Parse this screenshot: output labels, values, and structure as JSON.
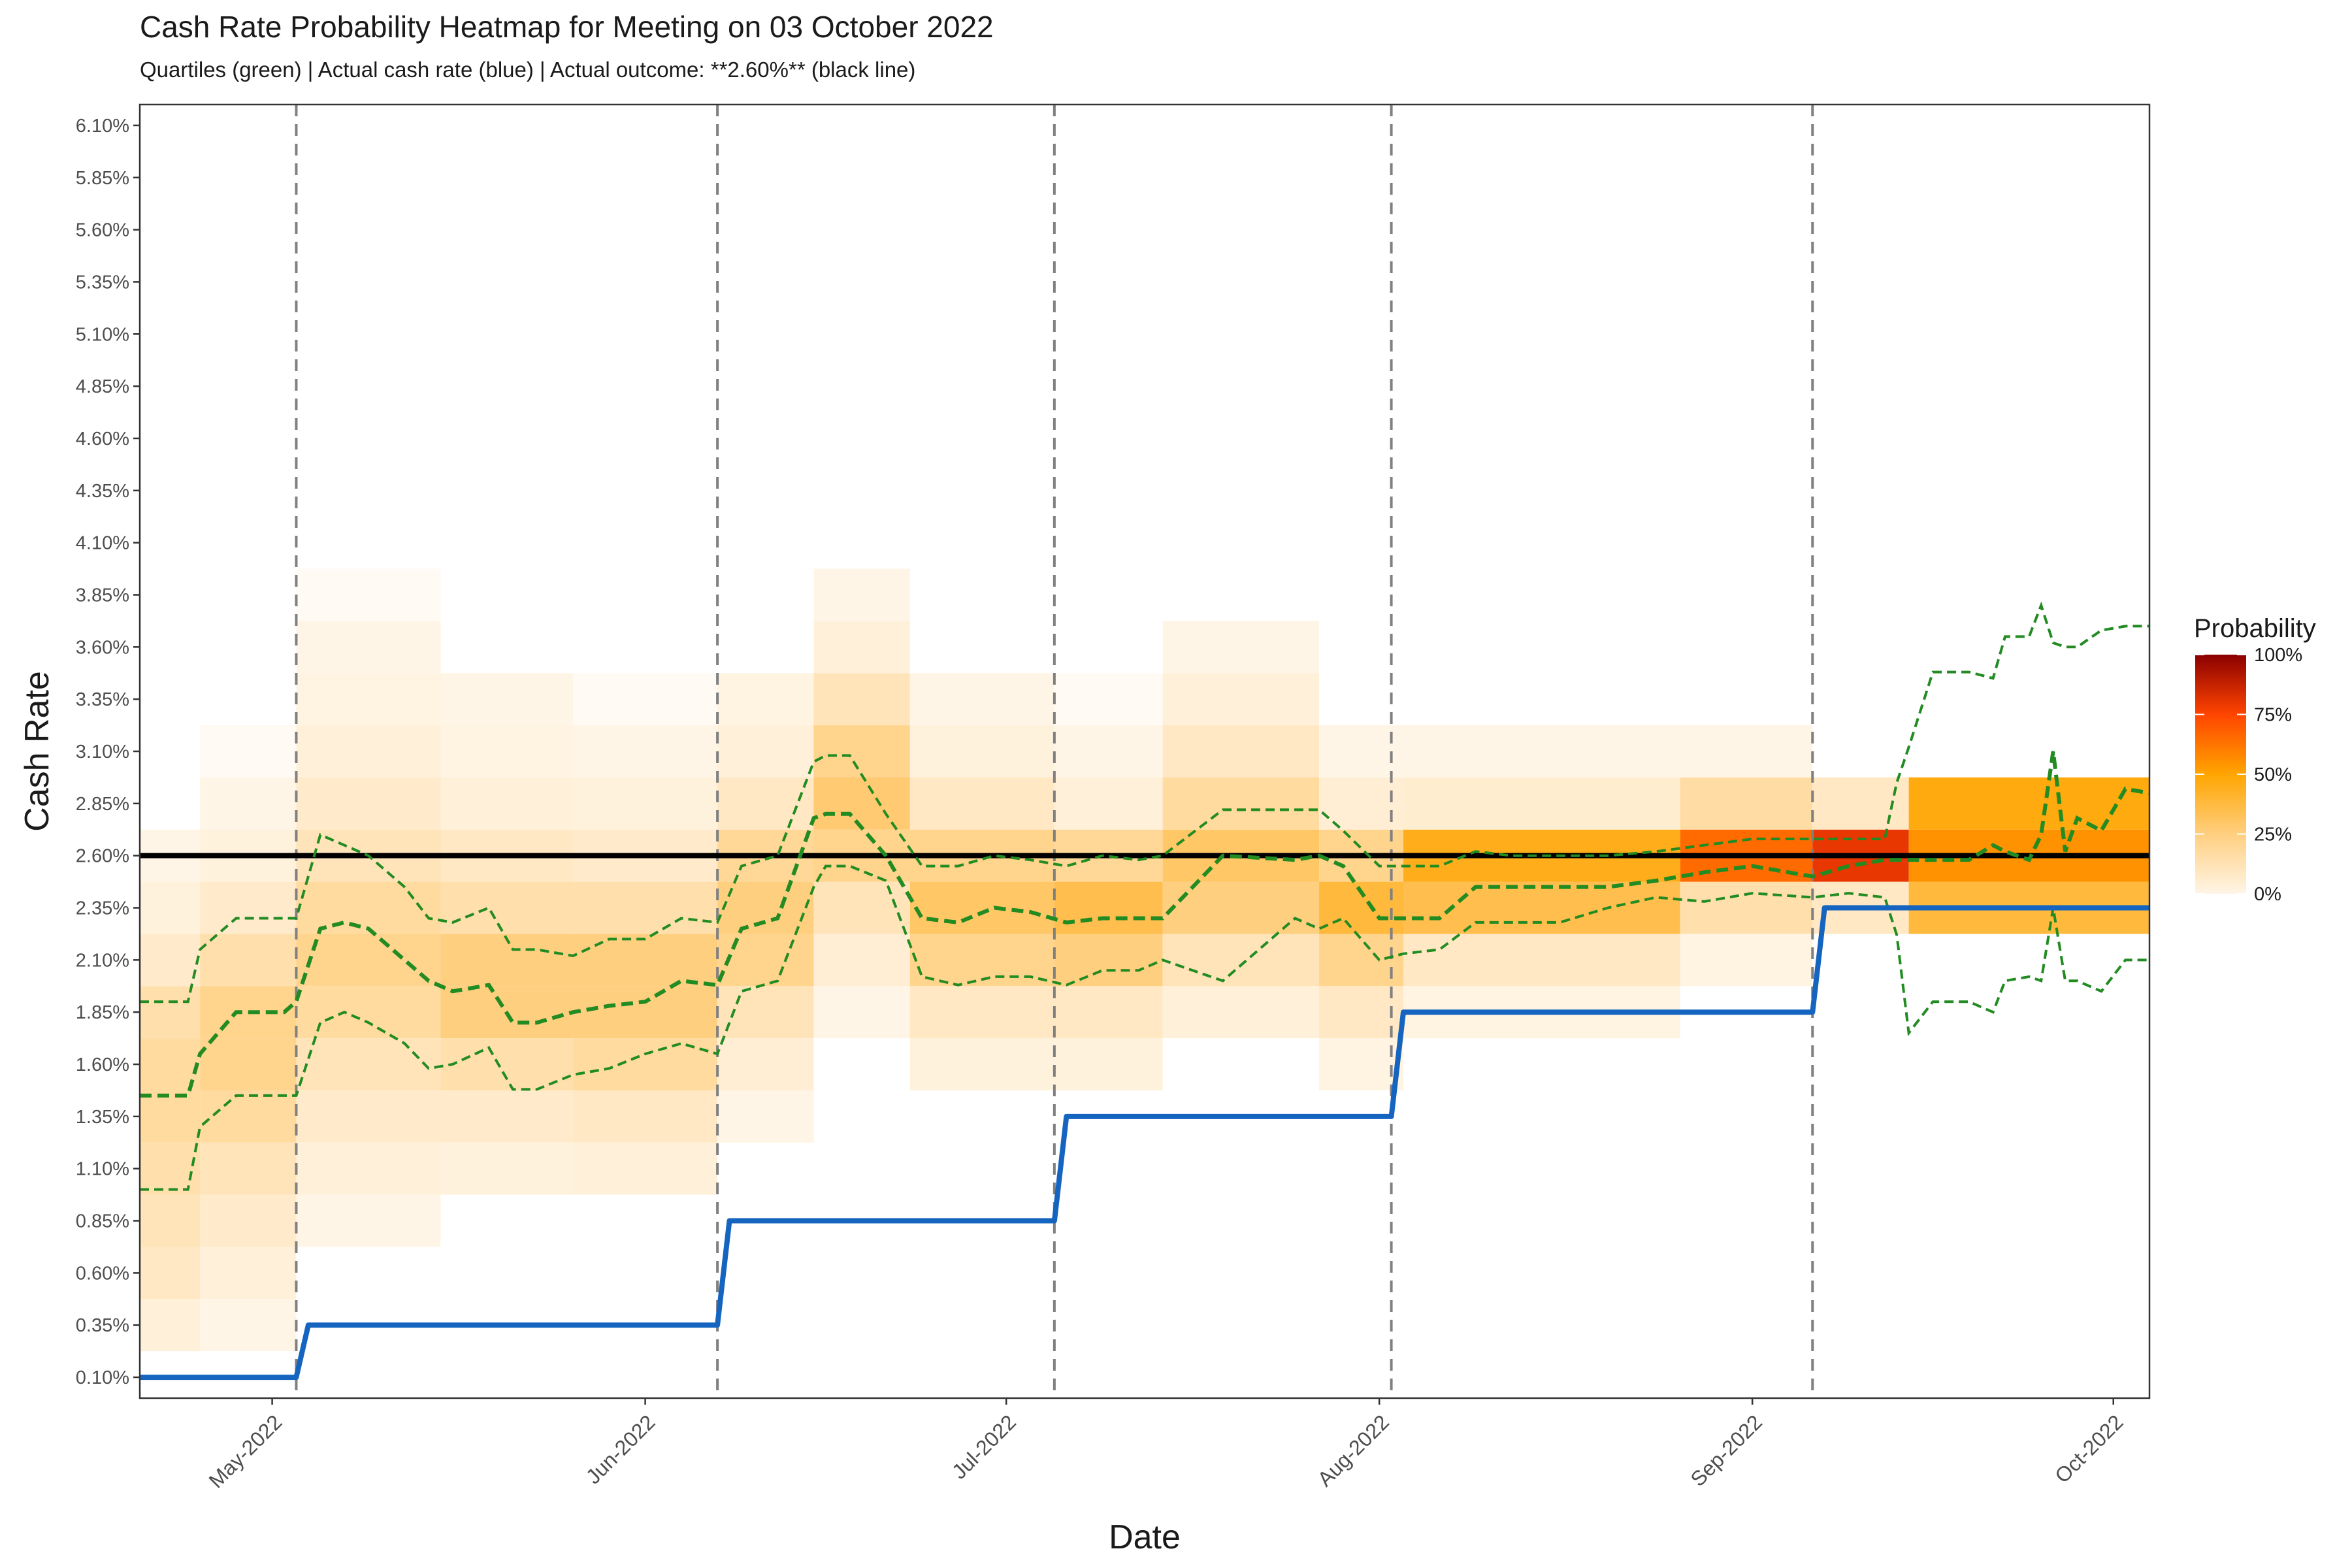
{
  "chart_data": {
    "type": "heatmap",
    "title": "Cash Rate Probability Heatmap for Meeting on 03 October 2022",
    "subtitle": "Quartiles (green) | Actual cash rate (blue) | Actual outcome: **2.60%** (black line)",
    "xlabel": "Date",
    "ylabel": "Cash Rate",
    "legend": {
      "title": "Probability",
      "placement": "right",
      "labels": [
        "100%",
        "75%",
        "50%",
        "25%",
        "0%"
      ]
    },
    "x_range": [
      "2022-04-20",
      "2022-10-04"
    ],
    "x_ticks": [
      {
        "date": "2022-05-01",
        "label": "May-2022"
      },
      {
        "date": "2022-06-01",
        "label": "Jun-2022"
      },
      {
        "date": "2022-07-01",
        "label": "Jul-2022"
      },
      {
        "date": "2022-08-01",
        "label": "Aug-2022"
      },
      {
        "date": "2022-09-01",
        "label": "Sep-2022"
      },
      {
        "date": "2022-10-01",
        "label": "Oct-2022"
      }
    ],
    "ylim": [
      0.0,
      6.2
    ],
    "y_ticks": [
      0.1,
      0.35,
      0.6,
      0.85,
      1.1,
      1.35,
      1.6,
      1.85,
      2.1,
      2.35,
      2.6,
      2.85,
      3.1,
      3.35,
      3.6,
      3.85,
      4.1,
      4.35,
      4.6,
      4.85,
      5.1,
      5.35,
      5.6,
      5.85,
      6.1
    ],
    "y_tick_labels": [
      "0.10%",
      "0.35%",
      "0.60%",
      "0.85%",
      "1.10%",
      "1.35%",
      "1.60%",
      "1.85%",
      "2.10%",
      "2.35%",
      "2.60%",
      "2.85%",
      "3.10%",
      "3.35%",
      "3.60%",
      "3.85%",
      "4.10%",
      "4.35%",
      "4.60%",
      "4.85%",
      "5.10%",
      "5.35%",
      "5.60%",
      "5.85%",
      "6.10%"
    ],
    "meeting_dates": [
      "2022-05-03",
      "2022-06-07",
      "2022-07-05",
      "2022-08-02",
      "2022-09-06"
    ],
    "actual_outcome": 2.6,
    "actual_cash_rate": [
      {
        "date": "2022-04-20",
        "rate": 0.1
      },
      {
        "date": "2022-05-03",
        "rate": 0.1
      },
      {
        "date": "2022-05-04",
        "rate": 0.35
      },
      {
        "date": "2022-06-07",
        "rate": 0.35
      },
      {
        "date": "2022-06-08",
        "rate": 0.85
      },
      {
        "date": "2022-07-05",
        "rate": 0.85
      },
      {
        "date": "2022-07-06",
        "rate": 1.35
      },
      {
        "date": "2022-08-02",
        "rate": 1.35
      },
      {
        "date": "2022-08-03",
        "rate": 1.85
      },
      {
        "date": "2022-09-06",
        "rate": 1.85
      },
      {
        "date": "2022-09-07",
        "rate": 2.35
      },
      {
        "date": "2022-10-04",
        "rate": 2.35
      }
    ],
    "quartiles": {
      "dates": [
        "2022-04-20",
        "2022-04-24",
        "2022-04-25",
        "2022-04-28",
        "2022-05-02",
        "2022-05-03",
        "2022-05-05",
        "2022-05-07",
        "2022-05-09",
        "2022-05-12",
        "2022-05-14",
        "2022-05-16",
        "2022-05-19",
        "2022-05-21",
        "2022-05-23",
        "2022-05-26",
        "2022-05-29",
        "2022-06-01",
        "2022-06-04",
        "2022-06-07",
        "2022-06-09",
        "2022-06-12",
        "2022-06-15",
        "2022-06-16",
        "2022-06-18",
        "2022-06-21",
        "2022-06-24",
        "2022-06-27",
        "2022-06-30",
        "2022-07-03",
        "2022-07-06",
        "2022-07-09",
        "2022-07-12",
        "2022-07-14",
        "2022-07-19",
        "2022-07-25",
        "2022-07-27",
        "2022-07-29",
        "2022-08-01",
        "2022-08-03",
        "2022-08-06",
        "2022-08-09",
        "2022-08-12",
        "2022-08-16",
        "2022-08-20",
        "2022-08-24",
        "2022-08-28",
        "2022-09-01",
        "2022-09-06",
        "2022-09-09",
        "2022-09-12",
        "2022-09-13",
        "2022-09-14",
        "2022-09-16",
        "2022-09-19",
        "2022-09-21",
        "2022-09-22",
        "2022-09-24",
        "2022-09-25",
        "2022-09-26",
        "2022-09-27",
        "2022-09-28",
        "2022-09-30",
        "2022-10-02",
        "2022-10-04"
      ],
      "q1": [
        1.0,
        1.0,
        1.3,
        1.45,
        1.45,
        1.45,
        1.8,
        1.85,
        1.8,
        1.7,
        1.58,
        1.6,
        1.68,
        1.48,
        1.48,
        1.55,
        1.58,
        1.65,
        1.7,
        1.65,
        1.95,
        2.0,
        2.45,
        2.55,
        2.55,
        2.48,
        2.02,
        1.98,
        2.02,
        2.02,
        1.98,
        2.05,
        2.05,
        2.1,
        2.0,
        2.3,
        2.25,
        2.3,
        2.1,
        2.13,
        2.15,
        2.28,
        2.28,
        2.28,
        2.35,
        2.4,
        2.38,
        2.42,
        2.4,
        2.42,
        2.4,
        2.22,
        1.75,
        1.9,
        1.9,
        1.85,
        2.0,
        2.02,
        2.0,
        2.35,
        2.0,
        2.0,
        1.95,
        2.1,
        2.1
      ],
      "median": [
        1.45,
        1.45,
        1.65,
        1.85,
        1.85,
        1.9,
        2.25,
        2.28,
        2.25,
        2.1,
        2.0,
        1.95,
        1.98,
        1.8,
        1.8,
        1.85,
        1.88,
        1.9,
        2.0,
        1.98,
        2.25,
        2.3,
        2.78,
        2.8,
        2.8,
        2.6,
        2.3,
        2.28,
        2.35,
        2.33,
        2.28,
        2.3,
        2.3,
        2.3,
        2.6,
        2.58,
        2.6,
        2.55,
        2.3,
        2.3,
        2.3,
        2.45,
        2.45,
        2.45,
        2.45,
        2.48,
        2.52,
        2.55,
        2.5,
        2.55,
        2.58,
        2.58,
        2.58,
        2.58,
        2.58,
        2.65,
        2.62,
        2.58,
        2.7,
        3.1,
        2.62,
        2.78,
        2.72,
        2.92,
        2.9
      ],
      "q3": [
        1.9,
        1.9,
        2.15,
        2.3,
        2.3,
        2.3,
        2.7,
        2.65,
        2.6,
        2.45,
        2.3,
        2.28,
        2.35,
        2.15,
        2.15,
        2.12,
        2.2,
        2.2,
        2.3,
        2.28,
        2.55,
        2.6,
        3.05,
        3.08,
        3.08,
        2.8,
        2.55,
        2.55,
        2.6,
        2.58,
        2.55,
        2.6,
        2.58,
        2.6,
        2.82,
        2.82,
        2.82,
        2.72,
        2.55,
        2.55,
        2.55,
        2.62,
        2.6,
        2.6,
        2.6,
        2.62,
        2.65,
        2.68,
        2.68,
        2.68,
        2.68,
        2.95,
        3.12,
        3.48,
        3.48,
        3.45,
        3.65,
        3.65,
        3.8,
        3.62,
        3.6,
        3.6,
        3.68,
        3.7,
        3.7
      ]
    },
    "heatmap_rows": [
      0.1,
      0.35,
      0.6,
      0.85,
      1.1,
      1.35,
      1.6,
      1.85,
      2.1,
      2.35,
      2.6,
      2.85,
      3.1,
      3.35,
      3.6,
      3.85
    ],
    "heatmap_columns": [
      {
        "start": "2022-04-20",
        "end": "2022-04-25",
        "probs": [
          0.0,
          0.05,
          0.1,
          0.12,
          0.15,
          0.18,
          0.18,
          0.15,
          0.08,
          0.04,
          0.02,
          0.0,
          0.0,
          0.0,
          0.0,
          0.0
        ]
      },
      {
        "start": "2022-04-25",
        "end": "2022-05-03",
        "probs": [
          0.0,
          0.02,
          0.05,
          0.08,
          0.12,
          0.18,
          0.22,
          0.22,
          0.15,
          0.08,
          0.04,
          0.02,
          0.01,
          0.0,
          0.0,
          0.0
        ]
      },
      {
        "start": "2022-05-03",
        "end": "2022-05-15",
        "probs": [
          0.0,
          0.0,
          0.0,
          0.02,
          0.05,
          0.08,
          0.12,
          0.18,
          0.22,
          0.18,
          0.12,
          0.08,
          0.05,
          0.03,
          0.02,
          0.01
        ]
      },
      {
        "start": "2022-05-15",
        "end": "2022-05-26",
        "probs": [
          0.0,
          0.0,
          0.0,
          0.0,
          0.04,
          0.08,
          0.15,
          0.25,
          0.25,
          0.15,
          0.1,
          0.05,
          0.03,
          0.02,
          0.0,
          0.0
        ]
      },
      {
        "start": "2022-05-26",
        "end": "2022-06-07",
        "probs": [
          0.0,
          0.0,
          0.0,
          0.0,
          0.05,
          0.1,
          0.18,
          0.25,
          0.25,
          0.15,
          0.08,
          0.04,
          0.02,
          0.01,
          0.0,
          0.0
        ]
      },
      {
        "start": "2022-06-07",
        "end": "2022-06-15",
        "probs": [
          0.0,
          0.0,
          0.0,
          0.0,
          0.0,
          0.02,
          0.06,
          0.12,
          0.22,
          0.25,
          0.2,
          0.1,
          0.05,
          0.03,
          0.0,
          0.0
        ]
      },
      {
        "start": "2022-06-15",
        "end": "2022-06-23",
        "probs": [
          0.0,
          0.0,
          0.0,
          0.0,
          0.0,
          0.0,
          0.0,
          0.02,
          0.06,
          0.12,
          0.22,
          0.28,
          0.22,
          0.12,
          0.05,
          0.02
        ]
      },
      {
        "start": "2022-06-23",
        "end": "2022-07-05",
        "probs": [
          0.0,
          0.0,
          0.0,
          0.0,
          0.0,
          0.0,
          0.04,
          0.1,
          0.22,
          0.3,
          0.22,
          0.1,
          0.04,
          0.02,
          0.0,
          0.0
        ]
      },
      {
        "start": "2022-07-05",
        "end": "2022-07-14",
        "probs": [
          0.0,
          0.0,
          0.0,
          0.0,
          0.0,
          0.0,
          0.04,
          0.1,
          0.25,
          0.35,
          0.2,
          0.05,
          0.02,
          0.01,
          0.0,
          0.0
        ]
      },
      {
        "start": "2022-07-14",
        "end": "2022-07-27",
        "probs": [
          0.0,
          0.0,
          0.0,
          0.0,
          0.0,
          0.0,
          0.0,
          0.05,
          0.12,
          0.25,
          0.3,
          0.18,
          0.1,
          0.05,
          0.02,
          0.0
        ]
      },
      {
        "start": "2022-07-27",
        "end": "2022-08-03",
        "probs": [
          0.0,
          0.0,
          0.0,
          0.0,
          0.0,
          0.0,
          0.03,
          0.1,
          0.22,
          0.38,
          0.22,
          0.06,
          0.02,
          0.0,
          0.0,
          0.0
        ]
      },
      {
        "start": "2022-08-03",
        "end": "2022-08-26",
        "probs": [
          0.0,
          0.0,
          0.0,
          0.0,
          0.0,
          0.0,
          0.0,
          0.03,
          0.1,
          0.35,
          0.45,
          0.07,
          0.02,
          0.0,
          0.0,
          0.0
        ]
      },
      {
        "start": "2022-08-26",
        "end": "2022-09-06",
        "probs": [
          0.0,
          0.0,
          0.0,
          0.0,
          0.0,
          0.0,
          0.0,
          0.0,
          0.03,
          0.15,
          0.65,
          0.17,
          0.02,
          0.0,
          0.0,
          0.0
        ]
      },
      {
        "start": "2022-09-06",
        "end": "2022-09-14",
        "probs": [
          0.0,
          0.0,
          0.0,
          0.0,
          0.0,
          0.0,
          0.0,
          0.0,
          0.0,
          0.1,
          0.8,
          0.1,
          0.0,
          0.0,
          0.0,
          0.0
        ]
      },
      {
        "start": "2022-09-14",
        "end": "2022-10-04",
        "probs": [
          0.0,
          0.0,
          0.0,
          0.0,
          0.0,
          0.0,
          0.0,
          0.0,
          0.0,
          0.38,
          0.55,
          0.47,
          0.0,
          0.0,
          0.0,
          0.0
        ]
      }
    ],
    "colors": {
      "heat_low": "#fff5e6",
      "heat_mid": "#ffa500",
      "heat_high": "#ff4500",
      "heat_max": "#8b0000",
      "quartile": "#228b22",
      "cash_rate": "#1565c0",
      "outcome": "#000000",
      "meeting_line": "#808080"
    },
    "grid": false
  }
}
